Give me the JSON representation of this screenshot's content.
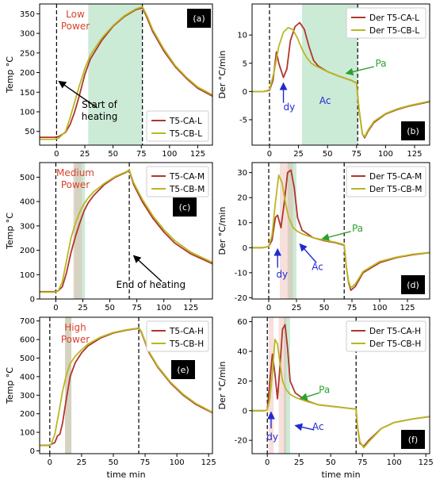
{
  "chart_data": [
    {
      "id": "a",
      "panel_label": "(a)",
      "type": "line",
      "ylabel": "Temp °C",
      "xlabel": "",
      "xlim": [
        -15,
        138
      ],
      "ylim": [
        15,
        375
      ],
      "xticks": [
        0,
        25,
        50,
        75,
        100,
        125
      ],
      "yticks": [
        50,
        100,
        150,
        200,
        250,
        300,
        350
      ],
      "vlines": [
        0,
        76
      ],
      "shade": [
        [
          28,
          76
        ]
      ],
      "red_shade": [],
      "legend": "bottom-right",
      "power_label": [
        "Low",
        "Power"
      ],
      "series": [
        {
          "name": "T5-CA-L",
          "color": "#b0362c",
          "x": [
            -15,
            -2,
            2,
            8,
            12,
            16,
            20,
            25,
            30,
            40,
            50,
            60,
            70,
            76,
            80,
            85,
            95,
            105,
            115,
            125,
            138
          ],
          "y": [
            35,
            35,
            37,
            48,
            68,
            100,
            140,
            195,
            235,
            282,
            318,
            343,
            360,
            365,
            340,
            305,
            255,
            215,
            185,
            160,
            140
          ]
        },
        {
          "name": "T5-CB-L",
          "color": "#b8b822",
          "x": [
            -15,
            -2,
            2,
            8,
            12,
            16,
            20,
            25,
            30,
            40,
            50,
            60,
            70,
            76,
            80,
            85,
            95,
            105,
            115,
            125,
            138
          ],
          "y": [
            30,
            30,
            33,
            50,
            85,
            125,
            165,
            210,
            245,
            288,
            320,
            345,
            362,
            368,
            345,
            310,
            260,
            218,
            188,
            163,
            143
          ]
        }
      ],
      "annotations": [
        {
          "text": "Start of",
          "x": 38,
          "y": 110,
          "color": "#000000"
        },
        {
          "text": "heating",
          "x": 38,
          "y": 80,
          "color": "#000000"
        }
      ],
      "arrows": [
        {
          "from": [
            36,
            110
          ],
          "to": [
            2,
            178
          ],
          "color": "#000000"
        }
      ]
    },
    {
      "id": "b",
      "panel_label": "(b)",
      "type": "line",
      "ylabel": "Der °C/min",
      "xlabel": "",
      "xlim": [
        -15,
        138
      ],
      "ylim": [
        -9.5,
        15.5
      ],
      "xticks": [
        0,
        25,
        50,
        75,
        100,
        125
      ],
      "yticks": [
        -5,
        0,
        5,
        10
      ],
      "vlines": [
        0,
        76
      ],
      "shade": [
        [
          28,
          76
        ]
      ],
      "red_shade": [],
      "legend": "top-right",
      "series": [
        {
          "name": "Der T5-CA-L",
          "color": "#b0362c",
          "x": [
            -15,
            -5,
            0,
            3,
            6,
            8,
            12,
            15,
            18,
            22,
            26,
            30,
            34,
            38,
            42,
            50,
            60,
            70,
            75,
            77,
            80,
            82,
            85,
            90,
            100,
            110,
            120,
            138
          ],
          "y": [
            0,
            0,
            0.2,
            2,
            7,
            5,
            2.5,
            4,
            9,
            11.5,
            12.2,
            11,
            8,
            5.5,
            4.5,
            3.5,
            2.7,
            2,
            1.5,
            -3,
            -7.5,
            -8.2,
            -7,
            -5.5,
            -4,
            -3.2,
            -2.6,
            -1.8
          ]
        },
        {
          "name": "Der T5-CB-L",
          "color": "#b8b822",
          "x": [
            -15,
            -5,
            0,
            4,
            8,
            12,
            16,
            20,
            24,
            28,
            32,
            36,
            40,
            50,
            60,
            70,
            75,
            77,
            80,
            82,
            85,
            90,
            100,
            110,
            120,
            138
          ],
          "y": [
            0,
            0,
            0.3,
            3.5,
            8,
            10.5,
            11.3,
            11,
            9.5,
            7.5,
            6,
            5,
            4.5,
            3.5,
            2.7,
            2,
            1.5,
            -3,
            -7.5,
            -8,
            -6.8,
            -5.3,
            -3.9,
            -3.1,
            -2.5,
            -1.7
          ]
        }
      ],
      "annotations": [
        {
          "text": "dy",
          "x": 17,
          "y": -3.3,
          "color": "#1f2bd1"
        },
        {
          "text": "Ac",
          "x": 48,
          "y": -2.2,
          "color": "#1f2bd1"
        },
        {
          "text": "Pa",
          "x": 96,
          "y": 4.4,
          "color": "#2ea02e"
        }
      ],
      "arrows": [
        {
          "from": [
            12,
            -2
          ],
          "to": [
            12,
            1.5
          ],
          "color": "#1f2bd1"
        },
        {
          "from": [
            90,
            4.4
          ],
          "to": [
            66,
            3.2
          ],
          "color": "#2ea02e"
        }
      ]
    },
    {
      "id": "c",
      "panel_label": "(c)",
      "type": "line",
      "ylabel": "Temp °C",
      "xlabel": "",
      "xlim": [
        -15,
        145
      ],
      "ylim": [
        0,
        560
      ],
      "xticks": [
        0,
        25,
        50,
        75,
        100,
        125
      ],
      "yticks": [
        0,
        100,
        200,
        300,
        400,
        500
      ],
      "vlines": [
        0,
        68
      ],
      "shade": [
        [
          17,
          27
        ]
      ],
      "red_shade": [
        [
          16,
          24
        ]
      ],
      "legend": "top-right",
      "power_label": [
        "Medium",
        "Power"
      ],
      "series": [
        {
          "name": "T5-CA-M",
          "color": "#b0362c",
          "x": [
            -15,
            -2,
            2,
            6,
            10,
            14,
            18,
            22,
            26,
            30,
            35,
            45,
            55,
            65,
            68,
            72,
            80,
            90,
            100,
            110,
            125,
            145
          ],
          "y": [
            30,
            30,
            33,
            50,
            110,
            190,
            255,
            310,
            360,
            395,
            425,
            470,
            500,
            520,
            528,
            470,
            400,
            330,
            275,
            230,
            185,
            145
          ]
        },
        {
          "name": "T5-CB-M",
          "color": "#b8b822",
          "x": [
            -15,
            -2,
            2,
            6,
            10,
            14,
            18,
            22,
            26,
            30,
            35,
            45,
            55,
            65,
            68,
            72,
            80,
            90,
            100,
            110,
            125,
            145
          ],
          "y": [
            28,
            28,
            32,
            70,
            160,
            250,
            310,
            355,
            390,
            415,
            440,
            475,
            503,
            522,
            530,
            478,
            410,
            340,
            285,
            240,
            192,
            150
          ]
        }
      ],
      "annotations": [
        {
          "text": "End of heating",
          "x": 88,
          "y": 45,
          "color": "#000000"
        }
      ],
      "arrows": [
        {
          "from": [
            98,
            72
          ],
          "to": [
            72,
            178
          ],
          "color": "#000000"
        }
      ]
    },
    {
      "id": "d",
      "panel_label": "(d)",
      "type": "line",
      "ylabel": "Der °C/min",
      "xlabel": "",
      "xlim": [
        -15,
        145
      ],
      "ylim": [
        -20.5,
        34
      ],
      "xticks": [
        0,
        25,
        50,
        75,
        100,
        125
      ],
      "yticks": [
        -20,
        -10,
        0,
        10,
        20,
        30
      ],
      "vlines": [
        0,
        68
      ],
      "shade": [
        [
          17,
          25
        ]
      ],
      "red_shade": [
        [
          10,
          22
        ]
      ],
      "legend": "top-right",
      "series": [
        {
          "name": "Der T5-CA-M",
          "color": "#b0362c",
          "x": [
            -15,
            -5,
            0,
            3,
            6,
            8,
            11,
            14,
            17,
            20,
            23,
            26,
            30,
            40,
            50,
            60,
            68,
            70,
            72,
            74,
            78,
            85,
            100,
            115,
            130,
            145
          ],
          "y": [
            0,
            0,
            0.5,
            3,
            12,
            13,
            8,
            18,
            30,
            31,
            24,
            12,
            7,
            4,
            2.8,
            2,
            1,
            -8,
            -14,
            -17,
            -15.5,
            -10,
            -6,
            -4,
            -2.8,
            -2
          ]
        },
        {
          "name": "Der T5-CB-M",
          "color": "#b8b822",
          "x": [
            -15,
            -5,
            0,
            3,
            6,
            9,
            12,
            15,
            18,
            22,
            26,
            30,
            40,
            50,
            60,
            68,
            70,
            72,
            74,
            78,
            85,
            100,
            115,
            130,
            145
          ],
          "y": [
            0,
            0,
            0.5,
            5,
            18,
            29,
            26,
            18,
            12,
            8,
            6.5,
            5.5,
            4,
            3,
            2.2,
            1.2,
            -8,
            -13.5,
            -16,
            -14.5,
            -9.5,
            -5.5,
            -3.8,
            -2.6,
            -1.9
          ]
        }
      ],
      "annotations": [
        {
          "text": "dy",
          "x": 12,
          "y": -12,
          "color": "#1f2bd1"
        },
        {
          "text": "Ac",
          "x": 44,
          "y": -9,
          "color": "#1f2bd1"
        },
        {
          "text": "Pa",
          "x": 80,
          "y": 6.5,
          "color": "#2ea02e"
        }
      ],
      "arrows": [
        {
          "from": [
            8,
            -8
          ],
          "to": [
            8,
            -0.5
          ],
          "color": "#1f2bd1"
        },
        {
          "from": [
            43,
            -6
          ],
          "to": [
            28,
            1.5
          ],
          "color": "#1f2bd1"
        },
        {
          "from": [
            74,
            6.5
          ],
          "to": [
            48,
            3.5
          ],
          "color": "#2ea02e"
        }
      ]
    },
    {
      "id": "e",
      "panel_label": "(e)",
      "type": "line",
      "ylabel": "Temp °C",
      "xlabel": "time min",
      "xlim": [
        -8,
        128
      ],
      "ylim": [
        -15,
        720
      ],
      "xticks": [
        0,
        25,
        50,
        75,
        100,
        125
      ],
      "yticks": [
        0,
        100,
        200,
        300,
        400,
        500,
        600,
        700
      ],
      "vlines": [
        0,
        70
      ],
      "shade": [
        [
          12,
          17
        ]
      ],
      "red_shade": [
        [
          12,
          17
        ]
      ],
      "legend": "top-right",
      "power_label": [
        "High",
        "Power"
      ],
      "series": [
        {
          "name": "T5-CA-H",
          "color": "#b0362c",
          "x": [
            -8,
            -1,
            1,
            4,
            6,
            8,
            10,
            13,
            16,
            20,
            25,
            30,
            40,
            50,
            60,
            70,
            72,
            78,
            85,
            95,
            105,
            115,
            128
          ],
          "y": [
            30,
            30,
            35,
            45,
            80,
            90,
            150,
            280,
            400,
            475,
            528,
            565,
            608,
            635,
            650,
            660,
            640,
            530,
            450,
            365,
            300,
            250,
            205
          ]
        },
        {
          "name": "T5-CB-H",
          "color": "#b8b822",
          "x": [
            -8,
            -1,
            1,
            4,
            7,
            10,
            13,
            16,
            20,
            25,
            30,
            40,
            50,
            60,
            70,
            72,
            78,
            85,
            95,
            105,
            115,
            128
          ],
          "y": [
            28,
            28,
            35,
            90,
            200,
            320,
            410,
            470,
            510,
            545,
            575,
            613,
            638,
            652,
            662,
            645,
            535,
            455,
            370,
            305,
            255,
            208
          ]
        }
      ],
      "annotations": [],
      "arrows": []
    },
    {
      "id": "f",
      "panel_label": "(f)",
      "type": "line",
      "ylabel": "Der °C/min",
      "xlabel": "time min",
      "xlim": [
        -12,
        128
      ],
      "ylim": [
        -29,
        63
      ],
      "xticks": [
        0,
        25,
        50,
        75,
        100,
        125
      ],
      "yticks": [
        -20,
        0,
        20,
        40,
        60
      ],
      "vlines": [
        0,
        70
      ],
      "shade": [
        [
          13,
          18
        ]
      ],
      "red_shade": [
        [
          1,
          5
        ],
        [
          9,
          15
        ]
      ],
      "legend": "top-right",
      "series": [
        {
          "name": "Der T5-CA-H",
          "color": "#b0362c",
          "x": [
            -12,
            -2,
            0,
            2,
            4,
            6,
            8,
            10,
            12,
            14,
            16,
            18,
            22,
            30,
            40,
            50,
            60,
            70,
            71,
            73,
            76,
            80,
            90,
            100,
            115,
            128
          ],
          "y": [
            0,
            0,
            0.5,
            20,
            38,
            25,
            8,
            30,
            55,
            58,
            42,
            20,
            12,
            7,
            4,
            3,
            2,
            1,
            -10,
            -22,
            -24,
            -20,
            -12,
            -8,
            -5.5,
            -4
          ]
        },
        {
          "name": "Der T5-CB-H",
          "color": "#b8b822",
          "x": [
            -12,
            -2,
            0,
            2,
            4,
            6,
            8,
            10,
            12,
            15,
            18,
            22,
            30,
            40,
            50,
            60,
            70,
            71,
            73,
            76,
            80,
            90,
            100,
            115,
            128
          ],
          "y": [
            0,
            0,
            0.5,
            8,
            25,
            48,
            45,
            32,
            20,
            14,
            11,
            9,
            6.5,
            4,
            3,
            2,
            1,
            -10,
            -21,
            -25,
            -21,
            -12,
            -8,
            -5.5,
            -4
          ]
        }
      ],
      "annotations": [
        {
          "text": "dy",
          "x": 4,
          "y": -20,
          "color": "#1f2bd1"
        },
        {
          "text": "Ac",
          "x": 40,
          "y": -13,
          "color": "#1f2bd1"
        },
        {
          "text": "Pa",
          "x": 45,
          "y": 12,
          "color": "#2ea02e"
        }
      ],
      "arrows": [
        {
          "from": [
            3,
            -12
          ],
          "to": [
            3,
            -1
          ],
          "color": "#1f2bd1"
        },
        {
          "from": [
            37,
            -13
          ],
          "to": [
            22,
            -10
          ],
          "color": "#1f2bd1"
        },
        {
          "from": [
            41,
            12
          ],
          "to": [
            26,
            8
          ],
          "color": "#2ea02e"
        }
      ]
    }
  ],
  "colors": {
    "shade_green": "#8fd3a6",
    "shade_red": "#e9a39b",
    "power_label": "#d9432b",
    "panel_label_bg": "#000000",
    "panel_label_fg": "#ffffff"
  }
}
